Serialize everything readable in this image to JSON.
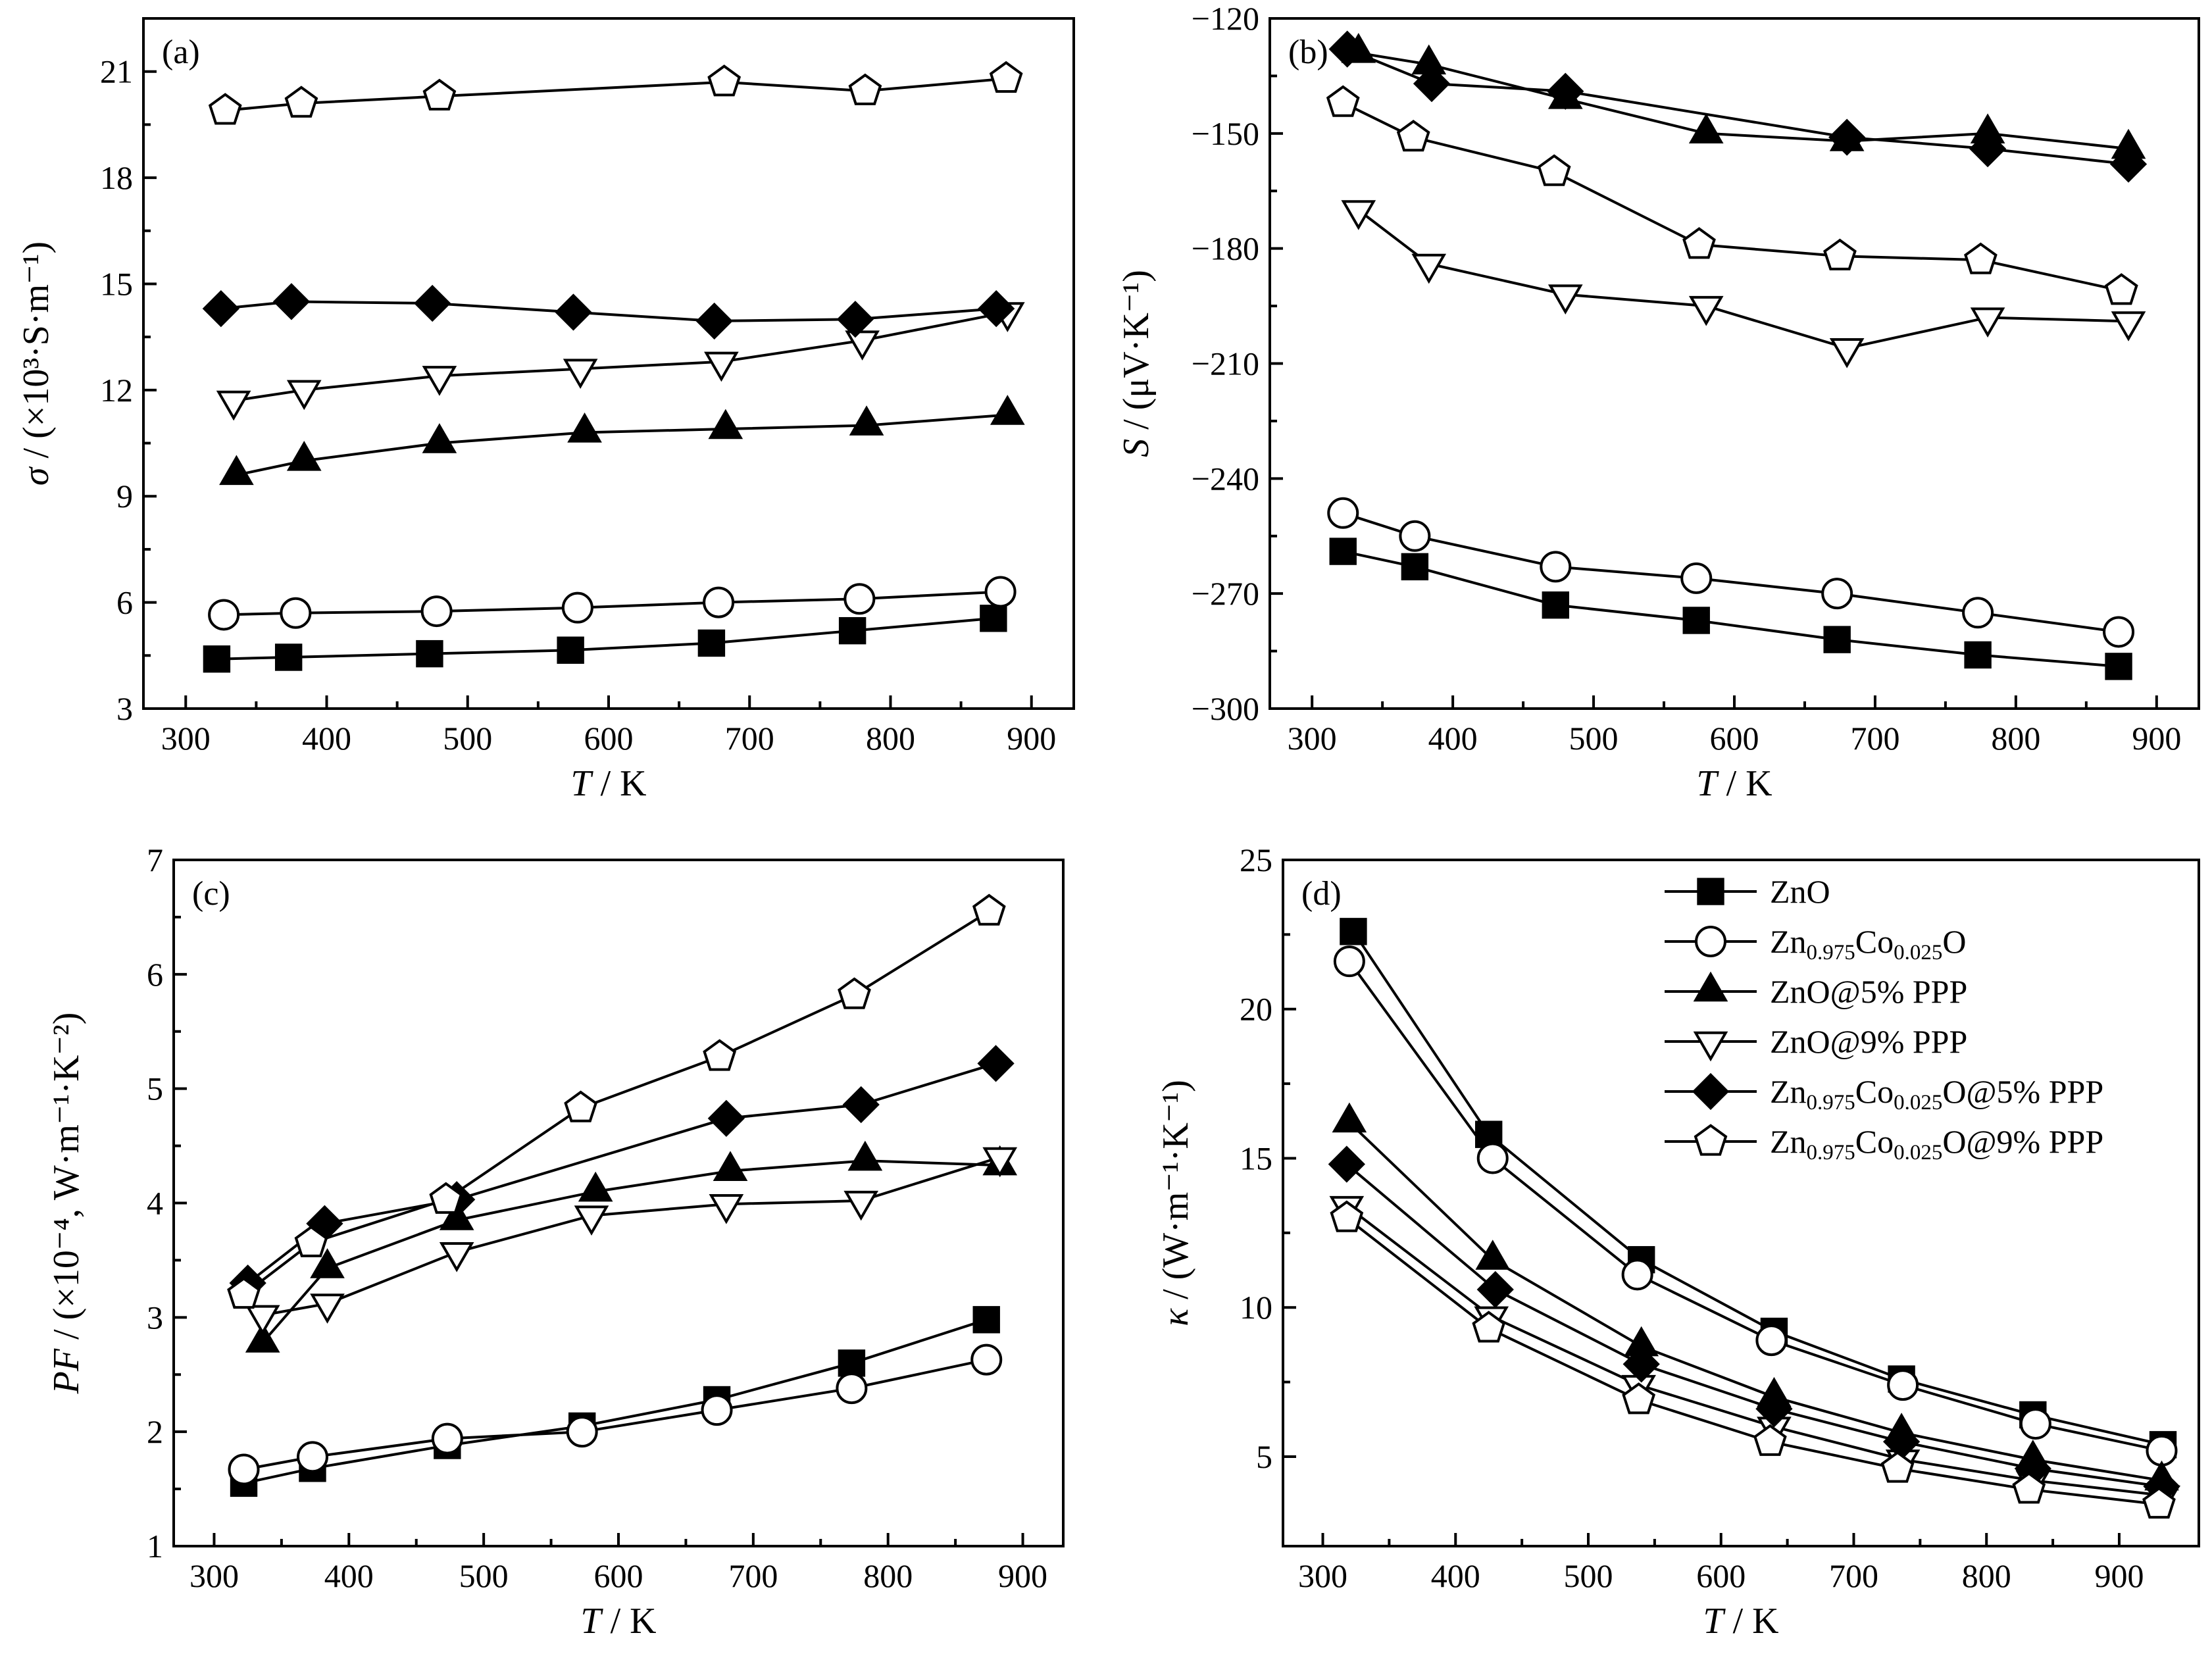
{
  "chart_data": [
    {
      "panel": "(a)",
      "type": "line",
      "xlabel": {
        "var": "T",
        "rest": " / K"
      },
      "ylabel": {
        "var": "σ",
        "rest": " / (×10³·S·m⁻¹)"
      },
      "xlim": [
        270,
        930
      ],
      "ylim": [
        3,
        22.5
      ],
      "xticks": [
        300,
        400,
        500,
        600,
        700,
        800,
        900
      ],
      "yticks": [
        3,
        6,
        9,
        12,
        15,
        18,
        21
      ],
      "grid": false,
      "series": [
        {
          "name": "ZnO",
          "marker": "square-filled",
          "points": [
            [
              322,
              4.4
            ],
            [
              373,
              4.45
            ],
            [
              473,
              4.55
            ],
            [
              573,
              4.65
            ],
            [
              673,
              4.85
            ],
            [
              773,
              5.2
            ],
            [
              873,
              5.55
            ]
          ]
        },
        {
          "name": "Zn0.975Co0.025O",
          "marker": "circle-open",
          "points": [
            [
              327,
              5.65
            ],
            [
              378,
              5.7
            ],
            [
              478,
              5.75
            ],
            [
              578,
              5.85
            ],
            [
              678,
              6.0
            ],
            [
              778,
              6.1
            ],
            [
              878,
              6.3
            ]
          ]
        },
        {
          "name": "ZnO@5% PPP",
          "marker": "triangle-up-filled",
          "points": [
            [
              336,
              9.6
            ],
            [
              384,
              10.0
            ],
            [
              480,
              10.5
            ],
            [
              583,
              10.8
            ],
            [
              683,
              10.9
            ],
            [
              783,
              11.0
            ],
            [
              883,
              11.3
            ]
          ]
        },
        {
          "name": "ZnO@9% PPP",
          "marker": "triangle-down-open",
          "points": [
            [
              334,
              11.7
            ],
            [
              384,
              12.0
            ],
            [
              480,
              12.4
            ],
            [
              580,
              12.6
            ],
            [
              680,
              12.8
            ],
            [
              780,
              13.4
            ],
            [
              883,
              14.2
            ]
          ]
        },
        {
          "name": "Zn0.975Co0.025O@5% PPP",
          "marker": "diamond-filled",
          "points": [
            [
              325,
              14.3
            ],
            [
              375,
              14.5
            ],
            [
              475,
              14.45
            ],
            [
              575,
              14.2
            ],
            [
              675,
              13.95
            ],
            [
              775,
              14.0
            ],
            [
              875,
              14.3
            ]
          ]
        },
        {
          "name": "Zn0.975Co0.025O@9% PPP",
          "marker": "pentagon-open",
          "points": [
            [
              328,
              19.9
            ],
            [
              382,
              20.1
            ],
            [
              480,
              20.3
            ],
            [
              682,
              20.7
            ],
            [
              782,
              20.45
            ],
            [
              882,
              20.8
            ]
          ]
        }
      ]
    },
    {
      "panel": "(b)",
      "type": "line",
      "xlabel": {
        "var": "T",
        "rest": " / K"
      },
      "ylabel": {
        "var": "S",
        "rest": " / (μV·K⁻¹)"
      },
      "xlim": [
        270,
        930
      ],
      "ylim": [
        -300,
        -120
      ],
      "xticks": [
        300,
        400,
        500,
        600,
        700,
        800,
        900
      ],
      "yticks": [
        -300,
        -270,
        -240,
        -210,
        -180,
        -150,
        -120
      ],
      "grid": false,
      "series": [
        {
          "name": "ZnO",
          "marker": "square-filled",
          "points": [
            [
              322,
              -259
            ],
            [
              373,
              -263
            ],
            [
              473,
              -273
            ],
            [
              573,
              -277
            ],
            [
              673,
              -282
            ],
            [
              773,
              -286
            ],
            [
              873,
              -289
            ]
          ]
        },
        {
          "name": "Zn0.975Co0.025O",
          "marker": "circle-open",
          "points": [
            [
              322,
              -249
            ],
            [
              373,
              -255
            ],
            [
              473,
              -263
            ],
            [
              573,
              -266
            ],
            [
              673,
              -270
            ],
            [
              773,
              -275
            ],
            [
              873,
              -280
            ]
          ]
        },
        {
          "name": "ZnO@5% PPP",
          "marker": "triangle-up-filled",
          "points": [
            [
              333,
              -129
            ],
            [
              383,
              -132
            ],
            [
              480,
              -141
            ],
            [
              580,
              -150
            ],
            [
              680,
              -152
            ],
            [
              780,
              -150
            ],
            [
              880,
              -154
            ]
          ]
        },
        {
          "name": "ZnO@9% PPP",
          "marker": "triangle-down-open",
          "points": [
            [
              333,
              -170
            ],
            [
              383,
              -184
            ],
            [
              480,
              -192
            ],
            [
              580,
              -195
            ],
            [
              680,
              -206
            ],
            [
              780,
              -198
            ],
            [
              880,
              -199
            ]
          ]
        },
        {
          "name": "Zn0.975Co0.025O@5% PPP",
          "marker": "diamond-filled",
          "points": [
            [
              325,
              -128
            ],
            [
              385,
              -137
            ],
            [
              480,
              -139
            ],
            [
              680,
              -151
            ],
            [
              780,
              -154
            ],
            [
              880,
              -158
            ]
          ]
        },
        {
          "name": "Zn0.975Co0.025O@9% PPP",
          "marker": "pentagon-open",
          "points": [
            [
              322,
              -142
            ],
            [
              372,
              -151
            ],
            [
              472,
              -160
            ],
            [
              575,
              -179
            ],
            [
              675,
              -182
            ],
            [
              775,
              -183
            ],
            [
              875,
              -191
            ]
          ]
        }
      ]
    },
    {
      "panel": "(c)",
      "type": "line",
      "xlabel": {
        "var": "T",
        "rest": " / K"
      },
      "ylabel": {
        "var": "PF",
        "rest": " / (×10⁻⁴, W·m⁻¹·K⁻²)"
      },
      "xlim": [
        270,
        930
      ],
      "ylim": [
        1,
        7
      ],
      "xticks": [
        300,
        400,
        500,
        600,
        700,
        800,
        900
      ],
      "yticks": [
        1,
        2,
        3,
        4,
        5,
        6,
        7
      ],
      "grid": false,
      "series": [
        {
          "name": "ZnO",
          "marker": "square-filled",
          "points": [
            [
              322,
              1.55
            ],
            [
              373,
              1.68
            ],
            [
              473,
              1.88
            ],
            [
              573,
              2.05
            ],
            [
              673,
              2.28
            ],
            [
              773,
              2.6
            ],
            [
              873,
              2.98
            ]
          ]
        },
        {
          "name": "Zn0.975Co0.025O",
          "marker": "circle-open",
          "points": [
            [
              322,
              1.67
            ],
            [
              373,
              1.78
            ],
            [
              473,
              1.94
            ],
            [
              573,
              2.0
            ],
            [
              673,
              2.19
            ],
            [
              773,
              2.38
            ],
            [
              873,
              2.63
            ]
          ]
        },
        {
          "name": "ZnO@5% PPP",
          "marker": "triangle-up-filled",
          "points": [
            [
              336,
              2.78
            ],
            [
              384,
              3.43
            ],
            [
              480,
              3.85
            ],
            [
              583,
              4.1
            ],
            [
              683,
              4.28
            ],
            [
              783,
              4.37
            ],
            [
              883,
              4.33
            ]
          ]
        },
        {
          "name": "ZnO@9% PPP",
          "marker": "triangle-down-open",
          "points": [
            [
              336,
              3.02
            ],
            [
              384,
              3.12
            ],
            [
              480,
              3.57
            ],
            [
              580,
              3.89
            ],
            [
              680,
              3.99
            ],
            [
              780,
              4.02
            ],
            [
              883,
              4.4
            ]
          ]
        },
        {
          "name": "Zn0.975Co0.025O@5% PPP",
          "marker": "diamond-filled",
          "points": [
            [
              325,
              3.3
            ],
            [
              382,
              3.82
            ],
            [
              480,
              4.03
            ],
            [
              680,
              4.74
            ],
            [
              780,
              4.86
            ],
            [
              880,
              5.22
            ]
          ]
        },
        {
          "name": "Zn0.975Co0.025O@9% PPP",
          "marker": "pentagon-open",
          "points": [
            [
              322,
              3.2
            ],
            [
              372,
              3.65
            ],
            [
              472,
              4.03
            ],
            [
              572,
              4.83
            ],
            [
              675,
              5.28
            ],
            [
              775,
              5.82
            ],
            [
              875,
              6.55
            ]
          ]
        }
      ]
    },
    {
      "panel": "(d)",
      "type": "line",
      "xlabel": {
        "var": "T",
        "rest": " / K"
      },
      "ylabel": {
        "var": "κ",
        "rest": " / (W·m⁻¹·K⁻¹)"
      },
      "xlim": [
        270,
        960
      ],
      "ylim": [
        2,
        25
      ],
      "xticks": [
        300,
        400,
        500,
        600,
        700,
        800,
        900
      ],
      "yticks": [
        5,
        10,
        15,
        20,
        25
      ],
      "grid": false,
      "legend_position": "top-right",
      "series": [
        {
          "name": "ZnO",
          "marker": "square-filled",
          "points": [
            [
              323,
              22.6
            ],
            [
              425,
              15.8
            ],
            [
              540,
              11.6
            ],
            [
              640,
              9.2
            ],
            [
              736,
              7.6
            ],
            [
              835,
              6.4
            ],
            [
              933,
              5.4
            ]
          ]
        },
        {
          "name": "Zn0.975Co0.025O",
          "marker": "circle-open",
          "points": [
            [
              320,
              21.6
            ],
            [
              428,
              15.0
            ],
            [
              537,
              11.1
            ],
            [
              638,
              8.9
            ],
            [
              737,
              7.4
            ],
            [
              837,
              6.1
            ],
            [
              932,
              5.2
            ]
          ]
        },
        {
          "name": "ZnO@5% PPP",
          "marker": "triangle-up-filled",
          "points": [
            [
              320,
              16.2
            ],
            [
              428,
              11.6
            ],
            [
              540,
              8.7
            ],
            [
              640,
              7.0
            ],
            [
              736,
              5.8
            ],
            [
              835,
              4.9
            ],
            [
              932,
              4.2
            ]
          ]
        },
        {
          "name": "ZnO@9% PPP",
          "marker": "triangle-down-open",
          "points": [
            [
              318,
              13.4
            ],
            [
              427,
              9.7
            ],
            [
              538,
              7.4
            ],
            [
              640,
              6.0
            ],
            [
              737,
              4.9
            ],
            [
              835,
              4.2
            ],
            [
              933,
              3.7
            ]
          ]
        },
        {
          "name": "Zn0.975Co0.025O@5% PPP",
          "marker": "diamond-filled",
          "points": [
            [
              318,
              14.8
            ],
            [
              430,
              10.6
            ],
            [
              540,
              8.1
            ],
            [
              640,
              6.6
            ],
            [
              736,
              5.5
            ],
            [
              835,
              4.6
            ],
            [
              932,
              4.0
            ]
          ]
        },
        {
          "name": "Zn0.975Co0.025O@9% PPP",
          "marker": "pentagon-open",
          "points": [
            [
              318,
              13.0
            ],
            [
              425,
              9.3
            ],
            [
              538,
              6.9
            ],
            [
              637,
              5.5
            ],
            [
              733,
              4.6
            ],
            [
              832,
              3.9
            ],
            [
              930,
              3.4
            ]
          ]
        }
      ]
    }
  ],
  "legend": [
    {
      "base": "ZnO",
      "parts": [
        {
          "t": "ZnO",
          "sub": false
        }
      ],
      "marker": "square-filled"
    },
    {
      "base": "Zn0.975Co0.025O",
      "parts": [
        {
          "t": "Zn",
          "sub": false
        },
        {
          "t": "0.975",
          "sub": true
        },
        {
          "t": "Co",
          "sub": false
        },
        {
          "t": "0.025",
          "sub": true
        },
        {
          "t": "O",
          "sub": false
        }
      ],
      "marker": "circle-open"
    },
    {
      "base": "ZnO@5% PPP",
      "parts": [
        {
          "t": "ZnO@5% PPP",
          "sub": false
        }
      ],
      "marker": "triangle-up-filled"
    },
    {
      "base": "ZnO@9% PPP",
      "parts": [
        {
          "t": "ZnO@9% PPP",
          "sub": false
        }
      ],
      "marker": "triangle-down-open"
    },
    {
      "base": "Zn0.975Co0.025O@5% PPP",
      "parts": [
        {
          "t": "Zn",
          "sub": false
        },
        {
          "t": "0.975",
          "sub": true
        },
        {
          "t": "Co",
          "sub": false
        },
        {
          "t": "0.025",
          "sub": true
        },
        {
          "t": "O@5% PPP",
          "sub": false
        }
      ],
      "marker": "diamond-filled"
    },
    {
      "base": "Zn0.975Co0.025O@9% PPP",
      "parts": [
        {
          "t": "Zn",
          "sub": false
        },
        {
          "t": "0.975",
          "sub": true
        },
        {
          "t": "Co",
          "sub": false
        },
        {
          "t": "0.025",
          "sub": true
        },
        {
          "t": "O@9% PPP",
          "sub": false
        }
      ],
      "marker": "pentagon-open"
    }
  ],
  "colors": {
    "line": "#000000",
    "fill": "#000000",
    "open_fill": "#ffffff"
  }
}
